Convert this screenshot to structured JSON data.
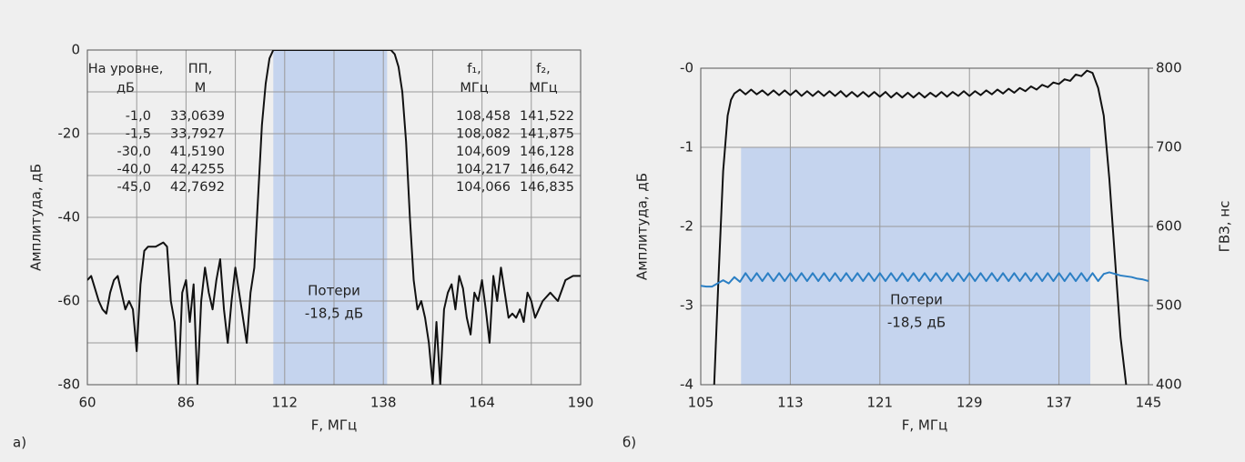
{
  "chart_data": [
    {
      "type": "line",
      "panel_label": "а)",
      "xlabel": "F, МГц",
      "ylabel": "Амплитуда, дБ",
      "xlim": [
        60,
        190
      ],
      "xticks": [
        60,
        86,
        112,
        138,
        164,
        190
      ],
      "xminorticks": [
        73,
        99,
        125,
        151,
        177
      ],
      "ylim": [
        -80,
        0
      ],
      "yticks": [
        -80,
        -60,
        -40,
        -20,
        0
      ],
      "yminorticks": [
        -70,
        -50,
        -30,
        -10
      ],
      "grid": true,
      "band": [
        109,
        139
      ],
      "band_y": [
        -80,
        0
      ],
      "band_color": "#c5d4ee",
      "annotation": [
        "Потери",
        "-18,5 дБ"
      ],
      "level_table": {
        "headers": [
          [
            "На уровне,",
            "дБ"
          ],
          [
            "ПП,",
            "М"
          ]
        ],
        "rows": [
          [
            "-1,0",
            "33,0639"
          ],
          [
            "-1,5",
            "33,7927"
          ],
          [
            "-30,0",
            "41,5190"
          ],
          [
            "-40,0",
            "42,4255"
          ],
          [
            "-45,0",
            "42,7692"
          ]
        ]
      },
      "freq_table": {
        "headers": [
          [
            "f₁,",
            "МГц"
          ],
          [
            "f₂,",
            "МГц"
          ]
        ],
        "rows": [
          [
            "108,458",
            "141,522"
          ],
          [
            "108,082",
            "141,875"
          ],
          [
            "104,609",
            "146,128"
          ],
          [
            "104,217",
            "146,642"
          ],
          [
            "104,066",
            "146,835"
          ]
        ]
      },
      "series": [
        {
          "color": "#111111",
          "x": [
            60,
            61,
            62,
            63,
            64,
            65,
            66,
            67,
            68,
            69,
            70,
            71,
            72,
            73,
            74,
            75,
            76,
            78,
            80,
            81,
            82,
            83,
            84,
            85,
            86,
            87,
            88,
            89,
            90,
            91,
            92,
            93,
            94,
            95,
            96,
            97,
            98,
            99,
            100,
            101,
            102,
            103,
            104,
            105,
            106,
            107,
            108,
            109,
            110,
            140,
            141,
            142,
            143,
            144,
            145,
            146,
            147,
            148,
            149,
            150,
            151,
            152,
            153,
            154,
            155,
            156,
            157,
            158,
            159,
            160,
            161,
            162,
            163,
            164,
            165,
            166,
            167,
            168,
            169,
            170,
            171,
            172,
            173,
            174,
            175,
            176,
            177,
            178,
            179,
            180,
            182,
            184,
            186,
            188,
            190
          ],
          "values": [
            -55,
            -54,
            -57,
            -60,
            -62,
            -63,
            -58,
            -55,
            -54,
            -58,
            -62,
            -60,
            -62,
            -72,
            -56,
            -48,
            -47,
            -47,
            -46,
            -47,
            -60,
            -65,
            -80,
            -58,
            -55,
            -65,
            -56,
            -80,
            -60,
            -52,
            -58,
            -62,
            -55,
            -50,
            -62,
            -70,
            -60,
            -52,
            -58,
            -64,
            -70,
            -58,
            -52,
            -35,
            -18,
            -8,
            -2,
            0,
            0,
            0,
            -1,
            -4,
            -10,
            -22,
            -40,
            -55,
            -62,
            -60,
            -64,
            -70,
            -80,
            -65,
            -80,
            -62,
            -58,
            -56,
            -62,
            -54,
            -57,
            -64,
            -68,
            -58,
            -60,
            -55,
            -62,
            -70,
            -54,
            -60,
            -52,
            -58,
            -64,
            -63,
            -64,
            -62,
            -65,
            -58,
            -60,
            -64,
            -62,
            -60,
            -58,
            -60,
            -55,
            -54,
            -54
          ]
        }
      ]
    },
    {
      "type": "line",
      "panel_label": "б)",
      "xlabel": "F, МГц",
      "ylabel": "Амплитуда, дБ",
      "y2label": "ГВЗ, нс",
      "xlim": [
        105,
        145
      ],
      "xticks": [
        105,
        113,
        121,
        129,
        137,
        145
      ],
      "ylim": [
        -4,
        0
      ],
      "yticks": [
        -4,
        -3,
        -2,
        -1,
        {
          "value": 0,
          "label": "-0"
        }
      ],
      "y2lim": [
        400,
        800
      ],
      "y2ticks": [
        400,
        500,
        600,
        700,
        800
      ],
      "grid": true,
      "band": [
        108.6,
        139.8
      ],
      "band_y": [
        -4,
        -1
      ],
      "band_color": "#c5d4ee",
      "annotation": [
        "Потери",
        "-18,5 дБ"
      ],
      "series": [
        {
          "color": "#111111",
          "x": [
            106.2,
            106.6,
            107,
            107.4,
            107.7,
            108,
            108.5,
            109,
            109.5,
            110,
            110.5,
            111,
            111.5,
            112,
            112.5,
            113,
            113.5,
            114,
            114.5,
            115,
            115.5,
            116,
            116.5,
            117,
            117.5,
            118,
            118.5,
            119,
            119.5,
            120,
            120.5,
            121,
            121.5,
            122,
            122.5,
            123,
            123.5,
            124,
            124.5,
            125,
            125.5,
            126,
            126.5,
            127,
            127.5,
            128,
            128.5,
            129,
            129.5,
            130,
            130.5,
            131,
            131.5,
            132,
            132.5,
            133,
            133.5,
            134,
            134.5,
            135,
            135.5,
            136,
            136.5,
            137,
            137.5,
            138,
            138.5,
            139,
            139.5,
            140,
            140.5,
            141,
            141.5,
            142,
            142.5,
            143
          ],
          "values": [
            -4,
            -2.6,
            -1.3,
            -0.6,
            -0.4,
            -0.32,
            -0.27,
            -0.33,
            -0.27,
            -0.33,
            -0.28,
            -0.34,
            -0.28,
            -0.34,
            -0.28,
            -0.34,
            -0.28,
            -0.35,
            -0.29,
            -0.35,
            -0.29,
            -0.35,
            -0.29,
            -0.35,
            -0.29,
            -0.36,
            -0.3,
            -0.36,
            -0.3,
            -0.36,
            -0.3,
            -0.36,
            -0.3,
            -0.37,
            -0.31,
            -0.37,
            -0.31,
            -0.37,
            -0.31,
            -0.37,
            -0.31,
            -0.36,
            -0.3,
            -0.36,
            -0.3,
            -0.35,
            -0.29,
            -0.35,
            -0.29,
            -0.34,
            -0.28,
            -0.33,
            -0.27,
            -0.32,
            -0.26,
            -0.31,
            -0.25,
            -0.29,
            -0.23,
            -0.27,
            -0.21,
            -0.24,
            -0.18,
            -0.2,
            -0.14,
            -0.16,
            -0.08,
            -0.1,
            -0.03,
            -0.06,
            -0.25,
            -0.6,
            -1.4,
            -2.4,
            -3.4,
            -4
          ]
        },
        {
          "color": "#2b7fc4",
          "axis": "y2",
          "x": [
            105,
            105.5,
            106,
            106.5,
            107,
            107.5,
            108,
            108.5,
            109,
            109.5,
            110,
            110.5,
            111,
            111.5,
            112,
            112.5,
            113,
            113.5,
            114,
            114.5,
            115,
            115.5,
            116,
            116.5,
            117,
            117.5,
            118,
            118.5,
            119,
            119.5,
            120,
            120.5,
            121,
            121.5,
            122,
            122.5,
            123,
            123.5,
            124,
            124.5,
            125,
            125.5,
            126,
            126.5,
            127,
            127.5,
            128,
            128.5,
            129,
            129.5,
            130,
            130.5,
            131,
            131.5,
            132,
            132.5,
            133,
            133.5,
            134,
            134.5,
            135,
            135.5,
            136,
            136.5,
            137,
            137.5,
            138,
            138.5,
            139,
            139.5,
            140,
            140.5,
            141,
            141.5,
            142,
            142.5,
            143,
            143.5,
            144,
            144.5,
            145
          ],
          "values": [
            525,
            524,
            524,
            528,
            532,
            528,
            536,
            530,
            541,
            531,
            541,
            531,
            541,
            531,
            541,
            531,
            541,
            531,
            541,
            531,
            541,
            531,
            541,
            531,
            541,
            531,
            541,
            531,
            541,
            531,
            541,
            531,
            541,
            531,
            541,
            531,
            541,
            531,
            541,
            531,
            541,
            531,
            541,
            531,
            541,
            531,
            541,
            531,
            541,
            531,
            541,
            531,
            541,
            531,
            541,
            531,
            541,
            531,
            541,
            531,
            541,
            531,
            541,
            531,
            541,
            531,
            541,
            531,
            541,
            531,
            541,
            531,
            540,
            542,
            540,
            538,
            537,
            536,
            534,
            533,
            531
          ]
        }
      ]
    }
  ]
}
